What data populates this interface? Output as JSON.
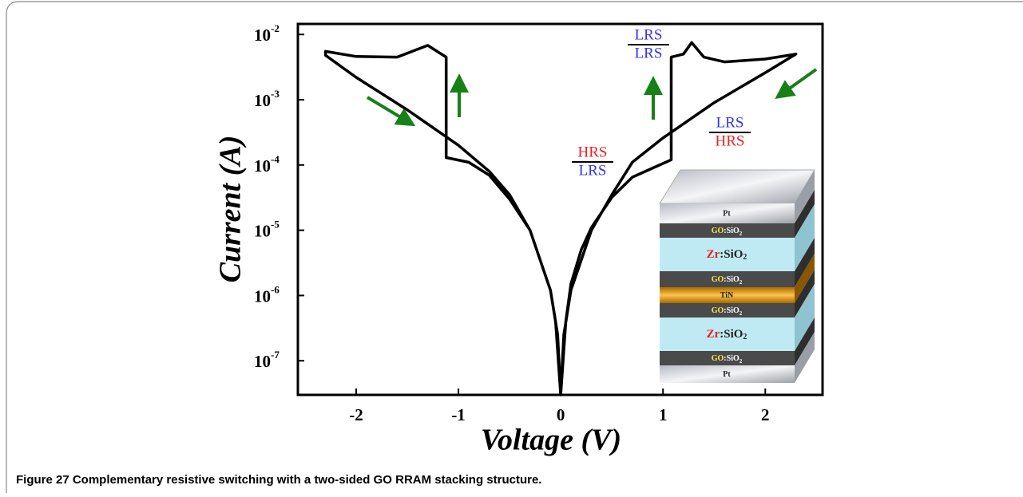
{
  "chart_data": {
    "type": "line",
    "xlabel": "Voltage (V)",
    "ylabel": "Current (A)",
    "caption": "Figure 27 Complementary resistive switching with a two-sided GO RRAM stacking structure.",
    "log_y": true,
    "xlim": [
      -2.57,
      2.56
    ],
    "ylim": [
      3e-08,
      0.0145
    ],
    "xticks": [
      -2,
      -1,
      0,
      1,
      2
    ],
    "yticks": [
      {
        "value": 0.01,
        "label": "10",
        "exponent": "-2"
      },
      {
        "value": 0.001,
        "label": "10",
        "exponent": "-3"
      },
      {
        "value": 0.0001,
        "label": "10",
        "exponent": "-4"
      },
      {
        "value": 1e-05,
        "label": "10",
        "exponent": "-5"
      },
      {
        "value": 1e-06,
        "label": "10",
        "exponent": "-6"
      },
      {
        "value": 1e-07,
        "label": "10",
        "exponent": "-7"
      }
    ],
    "series": [
      {
        "color": "#000000",
        "x": [
          0,
          0.05,
          0.1,
          0.2,
          0.3,
          0.5,
          0.7,
          0.9,
          1.08,
          1.08,
          1.2,
          1.28,
          1.4,
          1.6,
          2.0,
          2.3,
          2.0,
          1.5,
          1.0,
          0.7,
          0.5,
          0.3,
          0.1,
          0.03,
          0,
          -0.03,
          -0.1,
          -0.3,
          -0.5,
          -0.7,
          -0.9,
          -1.12,
          -1.12,
          -1.3,
          -1.6,
          -2.0,
          -2.3,
          -2.3,
          -2.0,
          -1.5,
          -1.0,
          -0.7,
          -0.5,
          -0.3,
          -0.1,
          -0.05,
          0
        ],
        "values": [
          3e-08,
          4e-07,
          1.5e-06,
          5e-06,
          1.1e-05,
          3.2e-05,
          6.5e-05,
          9e-05,
          0.00012,
          0.0045,
          0.005,
          0.0075,
          0.0045,
          0.0038,
          0.0042,
          0.005,
          0.0026,
          0.0009,
          0.00026,
          0.00011,
          3.5e-05,
          1e-05,
          1.2e-06,
          2.5e-07,
          3e-08,
          2.5e-07,
          1.2e-06,
          1e-05,
          3e-05,
          7e-05,
          0.00011,
          0.00013,
          0.0045,
          0.0068,
          0.0045,
          0.0046,
          0.0055,
          0.0048,
          0.0022,
          0.0007,
          0.0002,
          8e-05,
          3.5e-05,
          1e-05,
          1.2e-06,
          4e-07,
          3e-08
        ]
      }
    ],
    "annotations": [
      {
        "top": "LRS",
        "bottom": "LRS"
      },
      {
        "top": "HRS",
        "bottom": "LRS"
      },
      {
        "top": "LRS",
        "bottom": "HRS"
      }
    ],
    "inset_layers": [
      {
        "text": "Pt"
      },
      {
        "prefix": "GO",
        "text": ":SiO",
        "sub": "2"
      },
      {
        "prefix": "Zr",
        "text": ":SiO",
        "sub": "2"
      },
      {
        "prefix": "GO",
        "text": ":SiO",
        "sub": "2"
      },
      {
        "text": "TiN"
      },
      {
        "prefix": "GO",
        "text": ":SiO",
        "sub": "2"
      },
      {
        "prefix": "Zr",
        "text": ":SiO",
        "sub": "2"
      },
      {
        "prefix": "GO",
        "text": ":SiO",
        "sub": "2"
      },
      {
        "text": "Pt"
      }
    ]
  }
}
